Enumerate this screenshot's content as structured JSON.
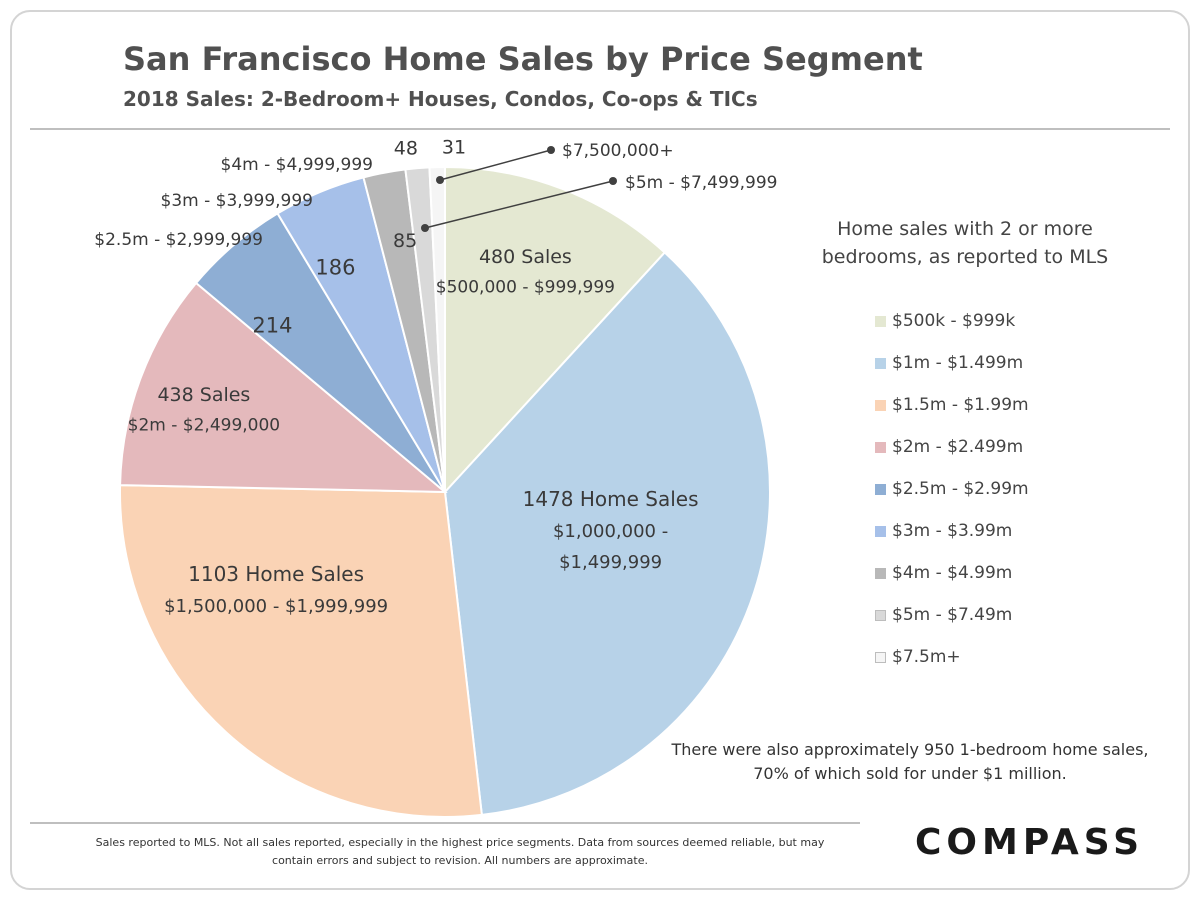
{
  "header": {
    "title": "San Francisco Home Sales by Price Segment",
    "subtitle": "2018 Sales: 2-Bedroom+ Houses, Condos, Co-ops & TICs"
  },
  "chart_data": {
    "type": "pie",
    "title": "San Francisco Home Sales by Price Segment",
    "subtitle": "2018 Sales: 2-Bedroom+ Houses, Condos, Co-ops & TICs",
    "start_angle_deg": 0,
    "direction": "clockwise",
    "slices": [
      {
        "legend": "$500k - $999k",
        "value": 480,
        "color": "#e4e8d2",
        "label_lines": [
          "480 Sales",
          "$500,000  - $999,999"
        ]
      },
      {
        "legend": "$1m - $1.499m",
        "value": 1478,
        "color": "#b7d2e8",
        "label_lines": [
          "1478 Home Sales",
          "$1,000,000  -",
          "$1,499,999"
        ]
      },
      {
        "legend": "$1.5m - $1.99m",
        "value": 1103,
        "color": "#fad3b5",
        "label_lines": [
          "1103 Home Sales",
          "$1,500,000  - $1,999,999"
        ]
      },
      {
        "legend": "$2m - $2.499m",
        "value": 438,
        "color": "#e4b9bc",
        "label_lines": [
          "438 Sales",
          "$2m - $2,499,000"
        ]
      },
      {
        "legend": "$2.5m - $2.99m",
        "value": 214,
        "color": "#8eaed4",
        "label_lines": [
          "214"
        ],
        "outer_label": "$2.5m - $2,999,999"
      },
      {
        "legend": "$3m - $3.99m",
        "value": 186,
        "color": "#a6c0e9",
        "label_lines": [
          "186"
        ],
        "outer_label": "$3m - $3,999,999"
      },
      {
        "legend": "$4m - $4.99m",
        "value": 85,
        "color": "#b8b8b8",
        "label_lines": [
          "85"
        ],
        "outer_label": "$4m - $4,999,999"
      },
      {
        "legend": "$5m - $7.49m",
        "value": 48,
        "color": "#d9d9d9",
        "label_lines": [
          "48"
        ],
        "outer_label": "$5m - $7,499,999"
      },
      {
        "legend": "$7.5m+",
        "value": 31,
        "color": "#f5f5f5",
        "label_lines": [
          "31"
        ],
        "outer_label": "$7,500,000+"
      }
    ],
    "legend_title": "Home sales with 2 or more bedrooms, as reported to MLS",
    "legend_position": "right"
  },
  "note": "There were also approximately 950 1-bedroom home sales, 70% of which sold for under $1 million.",
  "footnote": "Sales reported to MLS. Not all sales reported, especially in the highest price segments. Data from sources deemed reliable, but may contain errors and subject to revision. All numbers are approximate.",
  "logo": "COMPASS"
}
